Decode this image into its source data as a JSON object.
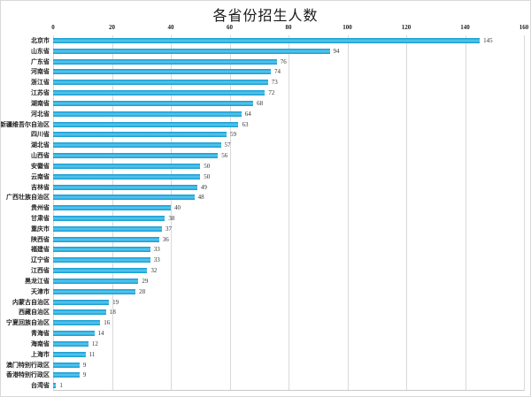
{
  "chart_data": {
    "type": "bar",
    "orientation": "horizontal",
    "title": "各省份招生人数",
    "xlabel": "",
    "ylabel": "",
    "xlim": [
      0,
      160
    ],
    "x_ticks": [
      0,
      20,
      40,
      60,
      80,
      100,
      120,
      140,
      160
    ],
    "grid": true,
    "value_labels_shown": true,
    "bar_color": "#29abe2",
    "gridline_color": "#d9d9d9",
    "categories": [
      "北京市",
      "山东省",
      "广东省",
      "河南省",
      "浙江省",
      "江苏省",
      "湖南省",
      "河北省",
      "新疆维吾尔自治区",
      "四川省",
      "湖北省",
      "山西省",
      "安徽省",
      "云南省",
      "吉林省",
      "广西壮族自治区",
      "贵州省",
      "甘肃省",
      "重庆市",
      "陕西省",
      "福建省",
      "辽宁省",
      "江西省",
      "黑龙江省",
      "天津市",
      "内蒙古自治区",
      "西藏自治区",
      "宁夏回族自治区",
      "青海省",
      "海南省",
      "上海市",
      "澳门特别行政区",
      "香港特别行政区",
      "台湾省"
    ],
    "values": [
      145,
      94,
      76,
      74,
      73,
      72,
      68,
      64,
      63,
      59,
      57,
      56,
      50,
      50,
      49,
      48,
      40,
      38,
      37,
      36,
      33,
      33,
      32,
      29,
      28,
      19,
      18,
      16,
      14,
      12,
      11,
      9,
      9,
      1
    ]
  }
}
